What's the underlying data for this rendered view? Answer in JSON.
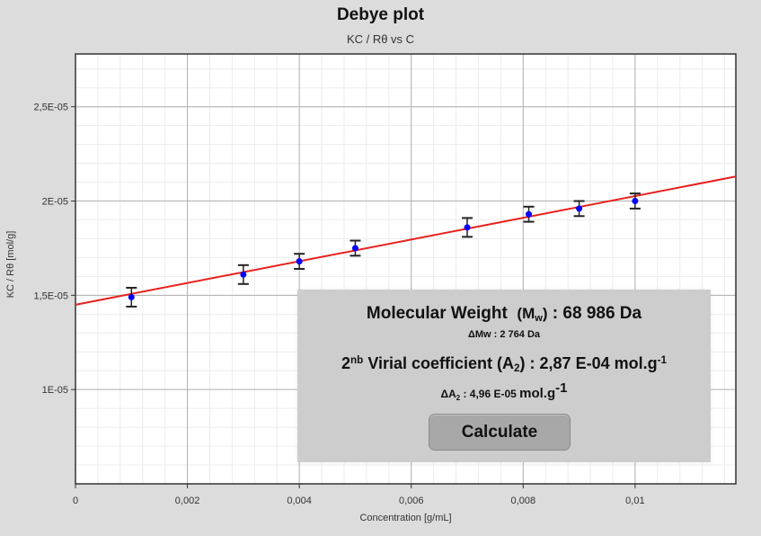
{
  "chart_data": {
    "type": "scatter",
    "title": "Debye plot",
    "subtitle": "KC / Rθ vs C",
    "xlabel": "Concentration [g/mL]",
    "ylabel": "KC / Rθ [mol/g]",
    "xlim": [
      0,
      0.0118
    ],
    "ylim": [
      5e-06,
      2.78e-05
    ],
    "xticks": [
      0,
      0.002,
      0.004,
      0.006,
      0.008,
      0.01
    ],
    "xtick_labels": [
      "0",
      "0,002",
      "0,004",
      "0,006",
      "0,008",
      "0,01"
    ],
    "yticks": [
      1e-05,
      1.5e-05,
      2e-05,
      2.5e-05
    ],
    "ytick_labels": [
      "1E-05",
      "1,5E-05",
      "2E-05",
      "2,5E-05"
    ],
    "grid": true,
    "series": [
      {
        "type": "scatter",
        "color": "#0000ff",
        "x": [
          0.001,
          0.003,
          0.004,
          0.005,
          0.007,
          0.0081,
          0.009,
          0.01
        ],
        "y": [
          1.49e-05,
          1.61e-05,
          1.68e-05,
          1.75e-05,
          1.86e-05,
          1.93e-05,
          1.96e-05,
          2e-05
        ],
        "error": [
          5e-07,
          5e-07,
          4e-07,
          4e-07,
          5e-07,
          4e-07,
          4e-07,
          4e-07
        ]
      },
      {
        "type": "line",
        "color": "#e8201e",
        "x": [
          0,
          0.0118
        ],
        "y": [
          1.45e-05,
          2.13e-05
        ]
      }
    ]
  },
  "results": {
    "mw_label": "Molecular Weight",
    "mw_symbol": "(M",
    "mw_symbol_sub": "w",
    "mw_symbol_end": ")",
    "mw_value": ": 68 986 Da",
    "dmw_text": "ΔMw : 2 764 Da",
    "a2_prefix": "2",
    "a2_sup": "nb",
    "a2_label": "Virial coefficient (A",
    "a2_sub": "2",
    "a2_value": ") : 2,87 E-04 mol.g",
    "a2_unit_sup": "-1",
    "da2_prefix": "ΔA",
    "da2_sub": "2",
    "da2_value": ": 4,96 E-05",
    "da2_unit": "mol.g",
    "da2_unit_sup": "-1",
    "calculate_label": "Calculate"
  }
}
